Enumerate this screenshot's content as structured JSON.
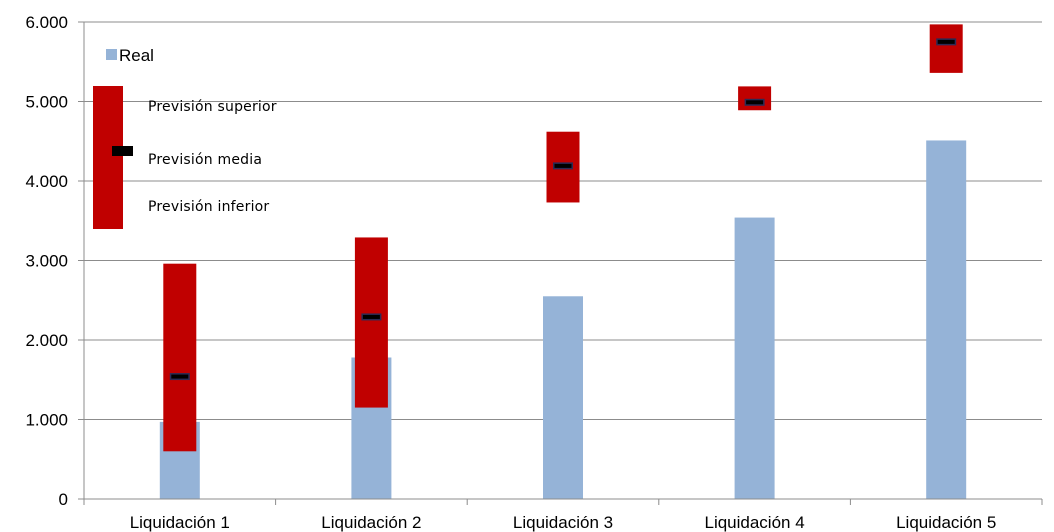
{
  "chart_data": {
    "type": "bar",
    "categories": [
      "Liquidación 1",
      "Liquidación 2",
      "Liquidación 3",
      "Liquidación 4",
      "Liquidación 5"
    ],
    "series": [
      {
        "name": "Real",
        "values": [
          970,
          1780,
          2550,
          3540,
          4510
        ],
        "color": "#95b3d7"
      }
    ],
    "forecast": {
      "upper": [
        2960,
        3290,
        4620,
        5190,
        5970
      ],
      "mean": [
        1540,
        2290,
        4190,
        4990,
        5750
      ],
      "lower": [
        600,
        1150,
        3730,
        4890,
        5360
      ],
      "range_color": "#c00000",
      "mean_color": "#000000"
    },
    "ylim": [
      0,
      6000
    ],
    "yticks": [
      0,
      1000,
      2000,
      3000,
      4000,
      5000,
      6000
    ],
    "ytick_labels": [
      "0",
      "1.000",
      "2.000",
      "3.000",
      "4.000",
      "5.000",
      "6.000"
    ],
    "grid": true,
    "legend": {
      "real_label": "Real",
      "upper_label": "Previsión superior",
      "mean_label": "Previsión media",
      "lower_label": "Previsión inferior",
      "placement": "top-left"
    }
  }
}
